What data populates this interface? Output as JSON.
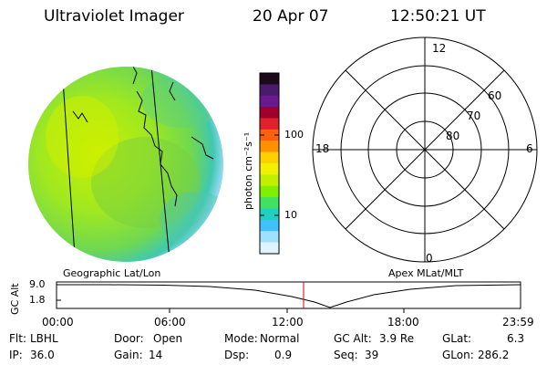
{
  "header": {
    "instrument": "Ultraviolet Imager",
    "date": "20 Apr 07",
    "time": "12:50:21 UT"
  },
  "colorbar": {
    "unit_label": "photon cm⁻²s⁻¹",
    "ticks": [
      "100",
      "10"
    ],
    "colors": [
      "#1a0a1a",
      "#4a1a6e",
      "#6a1a8e",
      "#a0002a",
      "#e0202a",
      "#ff6010",
      "#ff9000",
      "#ffd000",
      "#f0f000",
      "#c0f000",
      "#80f000",
      "#40e060",
      "#20d0c0",
      "#40c0ff",
      "#a0e0ff",
      "#e0f4ff"
    ]
  },
  "polar": {
    "mlt_labels": {
      "top": "12",
      "left": "18",
      "right": "6",
      "bottom": "0"
    },
    "lat_labels": [
      "60",
      "70",
      "80"
    ]
  },
  "coord_labels": {
    "left": "Geographic Lat/Lon",
    "right": "Apex MLat/MLT"
  },
  "orbit_plot": {
    "ylabel": "GC Alt",
    "y_ticks": [
      "9.0",
      "1.8"
    ],
    "x_ticks": [
      "00:00",
      "06:00",
      "12:00",
      "18:00",
      "23:59"
    ],
    "current_time_marker_color": "#e00000"
  },
  "info": {
    "flt": {
      "label": "Flt:",
      "value": "LBHL"
    },
    "ip": {
      "label": "IP:",
      "value": "36.0"
    },
    "door": {
      "label": "Door:",
      "value": "Open"
    },
    "gain": {
      "label": "Gain:",
      "value": "14"
    },
    "mode": {
      "label": "Mode:",
      "value": "Normal"
    },
    "dsp": {
      "label": "Dsp:",
      "value": "0.9"
    },
    "gcalt": {
      "label": "GC Alt:",
      "value": "3.9 Re"
    },
    "seq": {
      "label": "Seq:",
      "value": "39"
    },
    "glat": {
      "label": "GLat:",
      "value": "6.3"
    },
    "glon": {
      "label": "GLon:",
      "value": "286.2"
    }
  }
}
